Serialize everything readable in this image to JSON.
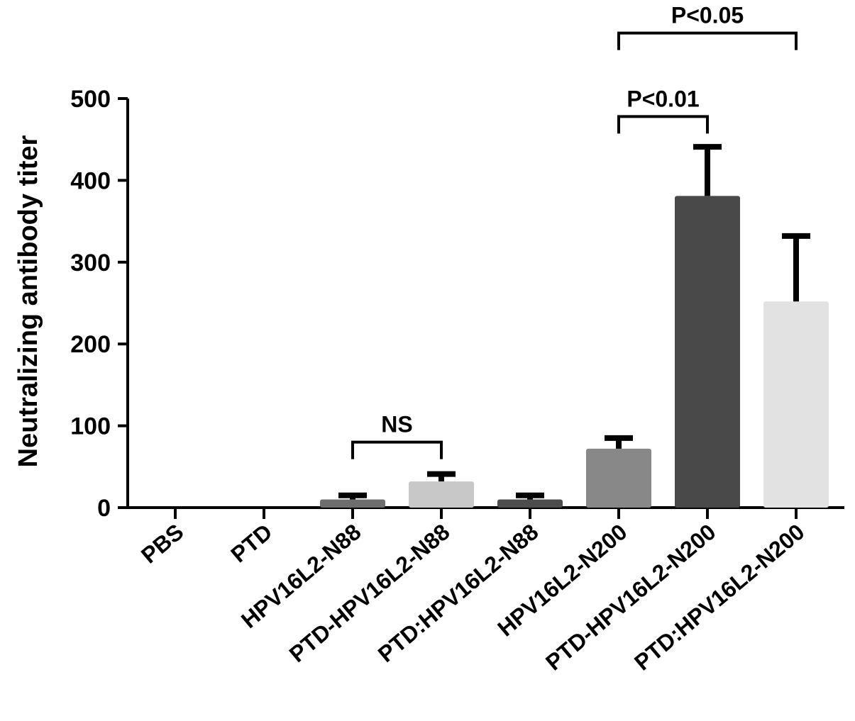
{
  "chart_data": {
    "type": "bar",
    "ylabel": "Neutralizing antibody titer",
    "xlabel": "",
    "ylim": [
      0,
      500
    ],
    "yticks": [
      0,
      100,
      200,
      300,
      400,
      500
    ],
    "yticklabels": [
      "0",
      "100",
      "200",
      "300",
      "400",
      "500"
    ],
    "categories": [
      "PBS",
      "PTD",
      "HPV16L2-N88",
      "PTD-HPV16L2-N88",
      "PTD:HPV16L2-N88",
      "HPV16L2-N200",
      "PTD-HPV16L2-N200",
      "PTD:HPV16L2-N200"
    ],
    "values": [
      0,
      0,
      10,
      32,
      10,
      72,
      381,
      252
    ],
    "errors": [
      0,
      0,
      5,
      9,
      5,
      13,
      60,
      80
    ],
    "colors": [
      "#ffffff",
      "#ffffff",
      "#6e6e6e",
      "#c8c8c8",
      "#4d4d4d",
      "#888888",
      "#494949",
      "#e2e2e2"
    ],
    "grid": false,
    "annotations": [
      {
        "label": "NS",
        "from": 2,
        "to": 3,
        "y": 80
      },
      {
        "label": "P<0.01",
        "from": 5,
        "to": 6,
        "y": 478
      },
      {
        "label": "P<0.05",
        "from": 5,
        "to": 7,
        "y": 580
      }
    ]
  }
}
